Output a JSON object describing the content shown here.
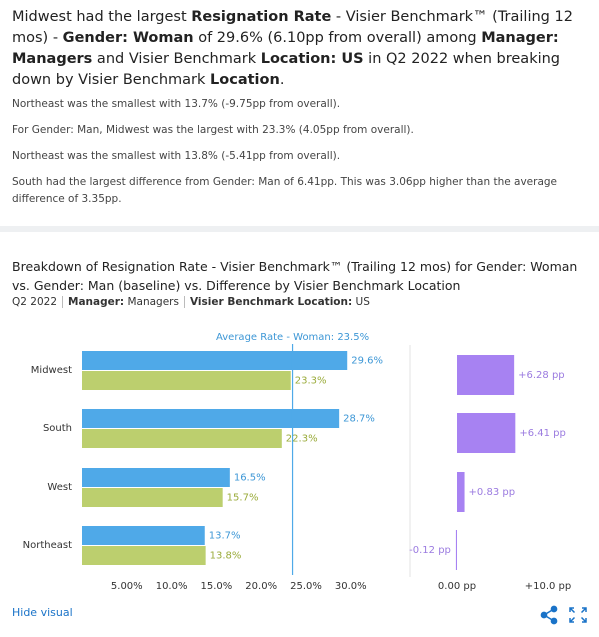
{
  "summary": {
    "headline": [
      {
        "text": "Midwest had the largest ",
        "bold": false
      },
      {
        "text": "Resignation Rate",
        "bold": true
      },
      {
        "text": " - Visier Benchmark™ (Trailing 12 mos) - ",
        "bold": false
      },
      {
        "text": "Gender: Woman",
        "bold": true
      },
      {
        "text": " of 29.6% (6.10pp from overall) among ",
        "bold": false
      },
      {
        "text": "Manager: Managers",
        "bold": true
      },
      {
        "text": " and Visier Benchmark ",
        "bold": false
      },
      {
        "text": "Location: US",
        "bold": true
      },
      {
        "text": " in Q2 2022 when breaking down by Visier Benchmark ",
        "bold": false
      },
      {
        "text": "Location",
        "bold": true
      },
      {
        "text": ".",
        "bold": false
      }
    ],
    "sentences": [
      "Northeast was the smallest with 13.7% (-9.75pp from overall).",
      "For Gender: Man, Midwest was the largest with 23.3% (4.05pp from overall).",
      "Northeast was the smallest with 13.8% (-5.41pp from overall).",
      "South had the largest difference from Gender: Man of 6.41pp. This was 3.06pp higher than the average difference of 3.35pp."
    ]
  },
  "visual": {
    "title": "Breakdown of Resignation Rate - Visier Benchmark™ (Trailing 12 mos) for Gender: Woman vs. Gender: Man (baseline) vs. Difference by Visier Benchmark Location",
    "filters": [
      {
        "value": "Q2 2022"
      },
      {
        "label": "Manager:",
        "value": "Managers"
      },
      {
        "label": "Visier Benchmark Location:",
        "value": "US"
      }
    ]
  },
  "chart_data": [
    {
      "type": "bar",
      "orientation": "horizontal",
      "categories": [
        "Midwest",
        "South",
        "West",
        "Northeast"
      ],
      "series": [
        {
          "color": "#4fa9e8",
          "label_color": "#3d97d6",
          "values": [
            29.6,
            28.7,
            16.5,
            13.7
          ],
          "value_labels": [
            "29.6%",
            "28.7%",
            "16.5%",
            "13.7%"
          ]
        },
        {
          "color": "#bccf6e",
          "label_color": "#9aab3a",
          "values": [
            23.3,
            22.3,
            15.7,
            13.8
          ],
          "value_labels": [
            "23.3%",
            "22.3%",
            "15.7%",
            "13.8%"
          ]
        }
      ],
      "reference": {
        "value": 23.5,
        "label": "Average Rate - Woman: 23.5%",
        "color": "#4fa9e8"
      },
      "xlim": [
        0,
        35
      ],
      "xticks": [
        {
          "value": 5,
          "label": "5.00%"
        },
        {
          "value": 10,
          "label": "10.0%"
        },
        {
          "value": 15,
          "label": "15.0%"
        },
        {
          "value": 20,
          "label": "20.0%"
        },
        {
          "value": 25,
          "label": "25.0%"
        },
        {
          "value": 30,
          "label": "30.0%"
        }
      ]
    },
    {
      "type": "bar",
      "orientation": "horizontal",
      "series": [
        {
          "color": "#a782f2",
          "label_color": "#9b7be0",
          "values": [
            6.28,
            6.41,
            0.83,
            -0.12
          ],
          "value_labels": [
            "+6.28 pp",
            "+6.41 pp",
            "+0.83 pp",
            "-0.12 pp"
          ]
        }
      ],
      "xlim": [
        -5,
        15
      ],
      "xticks": [
        {
          "value": 0,
          "label": "0.00 pp"
        },
        {
          "value": 10,
          "label": "+10.0 pp"
        }
      ]
    }
  ],
  "footer": {
    "toggle": "Hide visual"
  }
}
